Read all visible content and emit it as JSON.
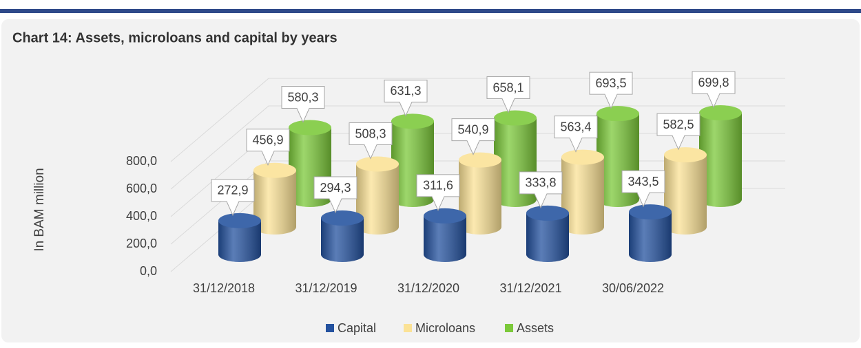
{
  "chart_data": {
    "type": "bar3d",
    "title": "Chart 14: Assets, microloans and capital by years",
    "y_label": "In BAM million",
    "categories": [
      "31/12/2018",
      "31/12/2019",
      "31/12/2020",
      "31/12/2021",
      "30/06/2022"
    ],
    "series": [
      {
        "name": "Capital",
        "color": "#24529f",
        "values": [
          272.9,
          294.3,
          311.6,
          333.8,
          343.5
        ],
        "value_labels": [
          "272,9",
          "294,3",
          "311,6",
          "333,8",
          "343,5"
        ]
      },
      {
        "name": "Microloans",
        "color": "#fbe296",
        "values": [
          456.9,
          508.3,
          540.9,
          563.4,
          582.5
        ],
        "value_labels": [
          "456,9",
          "508,3",
          "540,9",
          "563,4",
          "582,5"
        ]
      },
      {
        "name": "Assets",
        "color": "#7cc93a",
        "values": [
          580.3,
          631.3,
          658.1,
          693.5,
          699.8
        ],
        "value_labels": [
          "580,3",
          "631,3",
          "658,1",
          "693,5",
          "699,8"
        ]
      }
    ],
    "ylim": [
      0,
      800
    ],
    "yticks": [
      {
        "value": 0,
        "label": "0,0"
      },
      {
        "value": 200,
        "label": "200,0"
      },
      {
        "value": 400,
        "label": "400,0"
      },
      {
        "value": 600,
        "label": "600,0"
      },
      {
        "value": 800,
        "label": "800,0"
      }
    ],
    "grid": true,
    "legend": "bottom"
  }
}
